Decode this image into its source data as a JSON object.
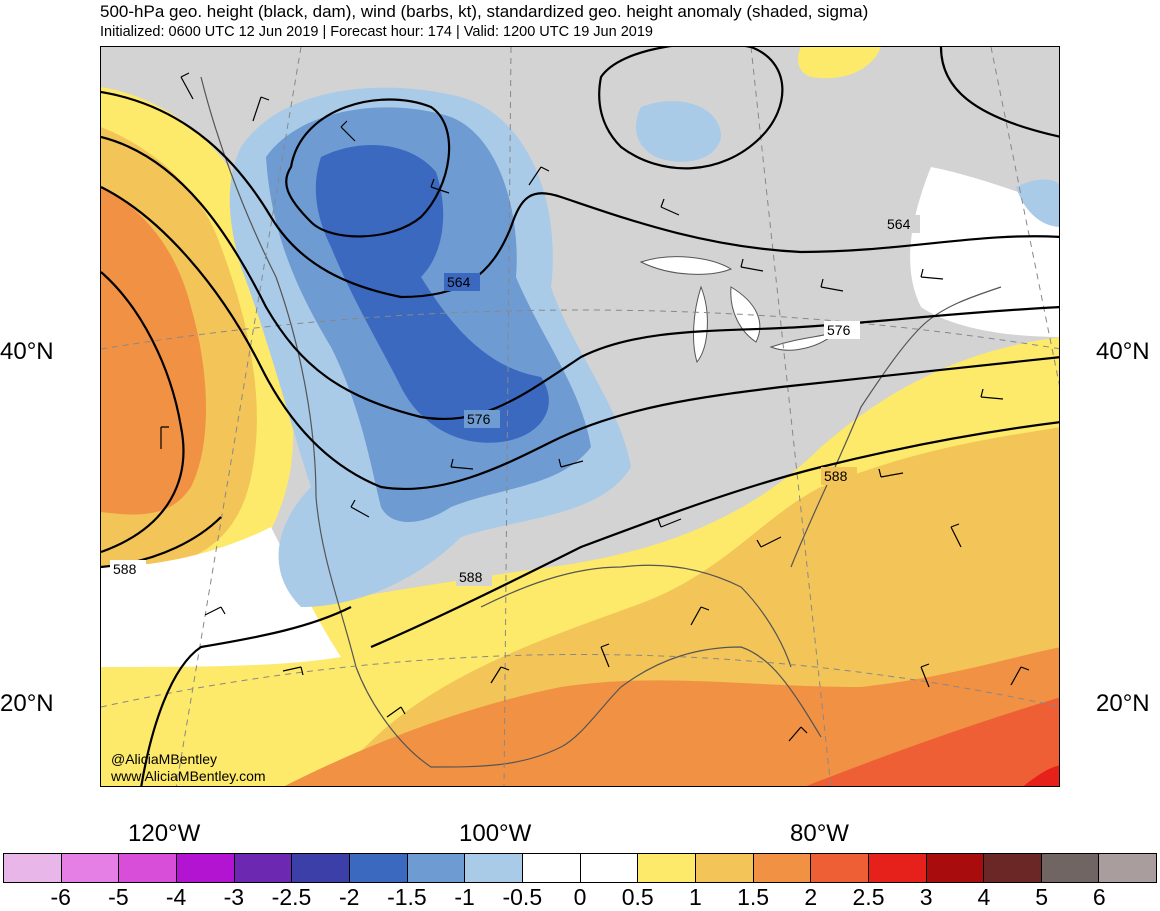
{
  "header": {
    "title": "500-hPa geo. height (black, dam), wind (barbs, kt), standardized geo. height anomaly (shaded, sigma)",
    "subtitle": "Initialized: 0600 UTC 12 Jun 2019 | Forecast hour: 174 | Valid: 1200 UTC 19 Jun 2019"
  },
  "axes": {
    "lat_labels": [
      "40°N",
      "20°N"
    ],
    "lon_labels": [
      "120°W",
      "100°W",
      "80°W"
    ]
  },
  "contours": {
    "labels": [
      "564",
      "564",
      "576",
      "576",
      "588",
      "588",
      "588"
    ]
  },
  "credit": {
    "handle": "@AliciaMBentley",
    "site": "www.AliciaMBentley.com"
  },
  "colorbar": {
    "colors": [
      "#e9b6e9",
      "#e57fe5",
      "#d84ed8",
      "#b214d2",
      "#6c28b1",
      "#3c3fa7",
      "#3b69c0",
      "#6f9bd3",
      "#a9cbe8",
      "#ffffff",
      "#ffffff",
      "#fde96a",
      "#f3c457",
      "#f19144",
      "#ee5f36",
      "#e6201b",
      "#a80c0c",
      "#6b2725",
      "#706563",
      "#a99d9d"
    ],
    "labels": [
      "-6",
      "-5",
      "-4",
      "-3",
      "-2.5",
      "-2",
      "-1.5",
      "-1",
      "-0.5",
      "0",
      "0.5",
      "1",
      "1.5",
      "2",
      "2.5",
      "3",
      "4",
      "5",
      "6"
    ]
  }
}
